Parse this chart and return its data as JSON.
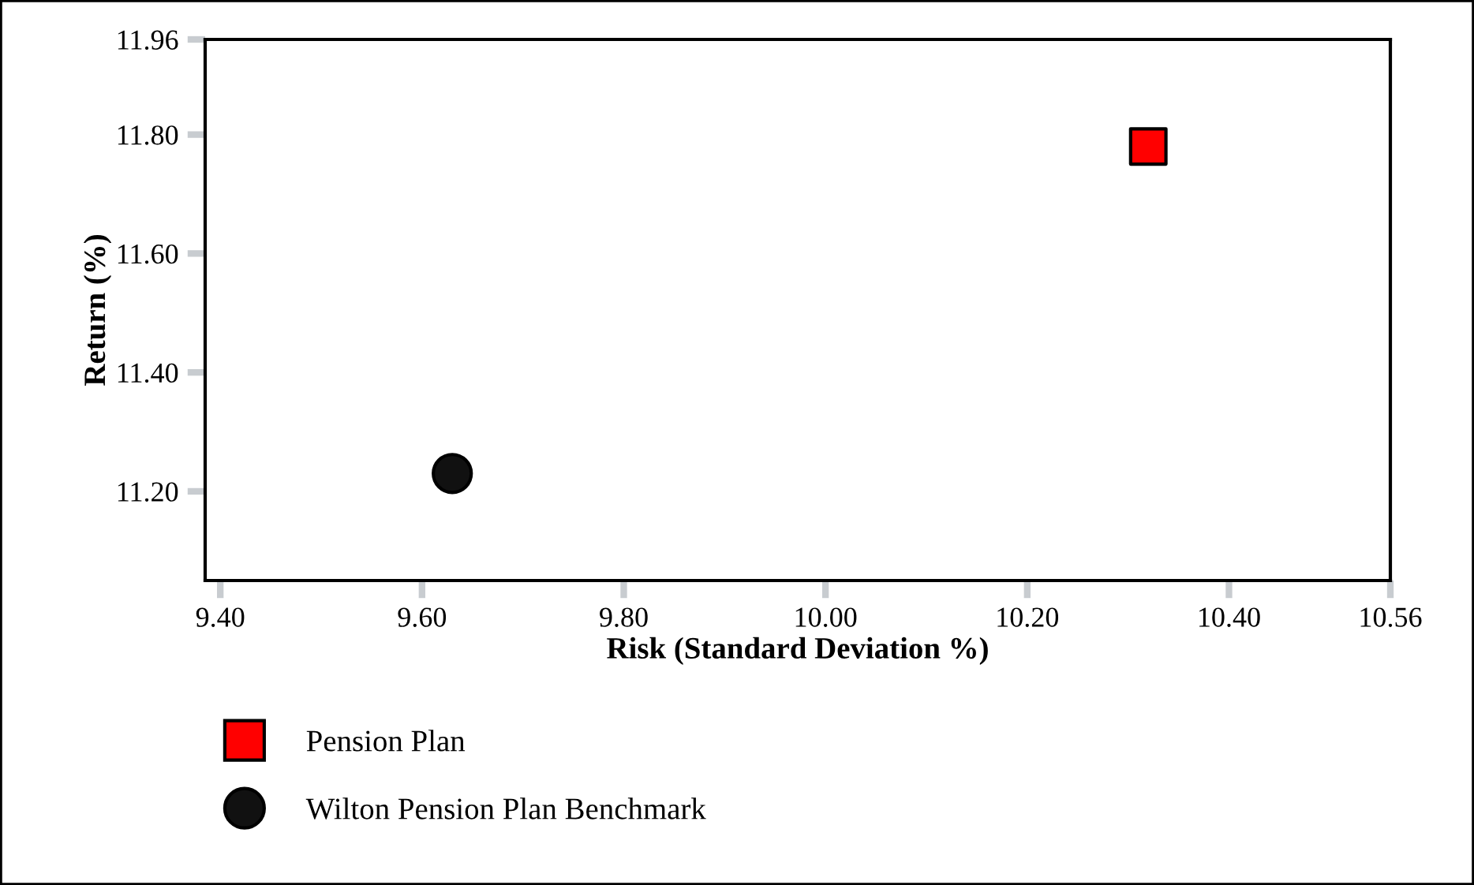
{
  "chart_data": {
    "type": "scatter",
    "xlabel": "Risk (Standard Deviation %)",
    "ylabel": "Return (%)",
    "xlim": [
      9.385,
      10.56
    ],
    "ylim": [
      11.05,
      11.96
    ],
    "xticks": [
      {
        "value": 9.4,
        "label": "9.40"
      },
      {
        "value": 9.6,
        "label": "9.60"
      },
      {
        "value": 9.8,
        "label": "9.80"
      },
      {
        "value": 10.0,
        "label": "10.00"
      },
      {
        "value": 10.2,
        "label": "10.20"
      },
      {
        "value": 10.4,
        "label": "10.40"
      },
      {
        "value": 10.56,
        "label": "10.56"
      }
    ],
    "yticks": [
      {
        "value": 11.2,
        "label": "11.20"
      },
      {
        "value": 11.4,
        "label": "11.40"
      },
      {
        "value": 11.6,
        "label": "11.60"
      },
      {
        "value": 11.8,
        "label": "11.80"
      },
      {
        "value": 11.96,
        "label": "11.96"
      }
    ],
    "grid": false,
    "legend": "bottom left",
    "series": [
      {
        "name": "Pension Plan",
        "color": "#ff0000",
        "marker": "square",
        "x": [
          10.32
        ],
        "values": [
          11.78
        ]
      },
      {
        "name": "Wilton Pension Plan Benchmark",
        "color": "#111111",
        "marker": "circle",
        "x": [
          9.63
        ],
        "values": [
          11.23
        ]
      }
    ]
  }
}
